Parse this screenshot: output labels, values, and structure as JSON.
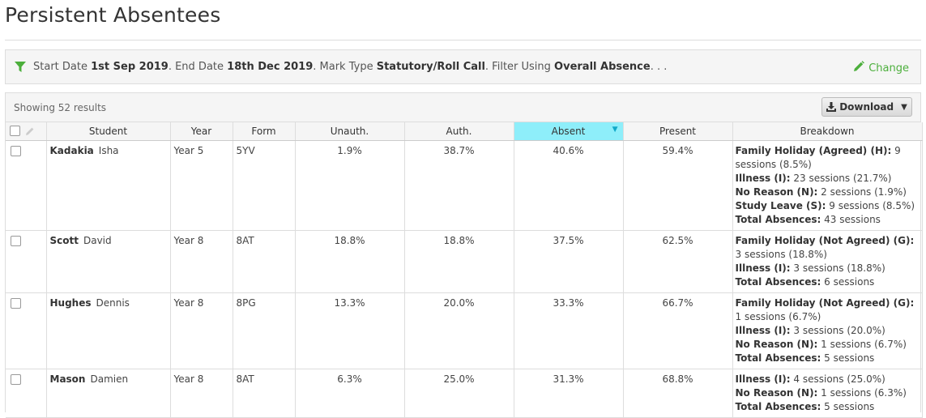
{
  "page": {
    "title": "Persistent Absentees"
  },
  "filter": {
    "icon": "filter-icon",
    "start_label": "Start Date",
    "start_value": "1st Sep 2019",
    "end_label": ". End Date",
    "end_value": "18th Dec 2019",
    "mark_label": ". Mark Type",
    "mark_value": "Statutory/Roll Call",
    "using_label": ". Filter Using",
    "using_value": "Overall Absence",
    "ellipsis": ". . .",
    "change_label": "Change"
  },
  "results": {
    "showing": "Showing 52 results",
    "download_label": "Download"
  },
  "table": {
    "columns": [
      "Student",
      "Year",
      "Form",
      "Unauth.",
      "Auth.",
      "Absent",
      "Present",
      "Breakdown"
    ],
    "sorted_column": "Absent",
    "rows": [
      {
        "surname": "Kadakia",
        "forename": "Isha",
        "year": "Year 5",
        "form": "5YV",
        "unauth": "1.9%",
        "auth": "38.7%",
        "absent": "40.6%",
        "present": "59.4%",
        "breakdown": [
          {
            "label": "Family Holiday (Agreed) (H):",
            "text": " 9 sessions (8.5%)"
          },
          {
            "label": "Illness (I):",
            "text": " 23 sessions (21.7%)"
          },
          {
            "label": "No Reason (N):",
            "text": " 2 sessions (1.9%)"
          },
          {
            "label": "Study Leave (S):",
            "text": " 9 sessions (8.5%)"
          },
          {
            "label": "Total Absences:",
            "text": " 43 sessions"
          }
        ]
      },
      {
        "surname": "Scott",
        "forename": "David",
        "year": "Year 8",
        "form": "8AT",
        "unauth": "18.8%",
        "auth": "18.8%",
        "absent": "37.5%",
        "present": "62.5%",
        "breakdown": [
          {
            "label": "Family Holiday (Not Agreed) (G):",
            "text": " 3 sessions (18.8%)"
          },
          {
            "label": "Illness (I):",
            "text": " 3 sessions (18.8%)"
          },
          {
            "label": "Total Absences:",
            "text": " 6 sessions"
          }
        ]
      },
      {
        "surname": "Hughes",
        "forename": "Dennis",
        "year": "Year 8",
        "form": "8PG",
        "unauth": "13.3%",
        "auth": "20.0%",
        "absent": "33.3%",
        "present": "66.7%",
        "breakdown": [
          {
            "label": "Family Holiday (Not Agreed) (G):",
            "text": " 1 sessions (6.7%)"
          },
          {
            "label": "Illness (I):",
            "text": " 3 sessions (20.0%)"
          },
          {
            "label": "No Reason (N):",
            "text": " 1 sessions (6.7%)"
          },
          {
            "label": "Total Absences:",
            "text": " 5 sessions"
          }
        ]
      },
      {
        "surname": "Mason",
        "forename": "Damien",
        "year": "Year 8",
        "form": "8AT",
        "unauth": "6.3%",
        "auth": "25.0%",
        "absent": "31.3%",
        "present": "68.8%",
        "breakdown": [
          {
            "label": "Illness (I):",
            "text": " 4 sessions (25.0%)"
          },
          {
            "label": "No Reason (N):",
            "text": " 1 sessions (6.3%)"
          },
          {
            "label": "Total Absences:",
            "text": " 5 sessions"
          }
        ]
      }
    ]
  },
  "colors": {
    "accent_green": "#4caf3c",
    "sorted_header": "#8eeefa",
    "sort_caret": "#11a9c8"
  }
}
